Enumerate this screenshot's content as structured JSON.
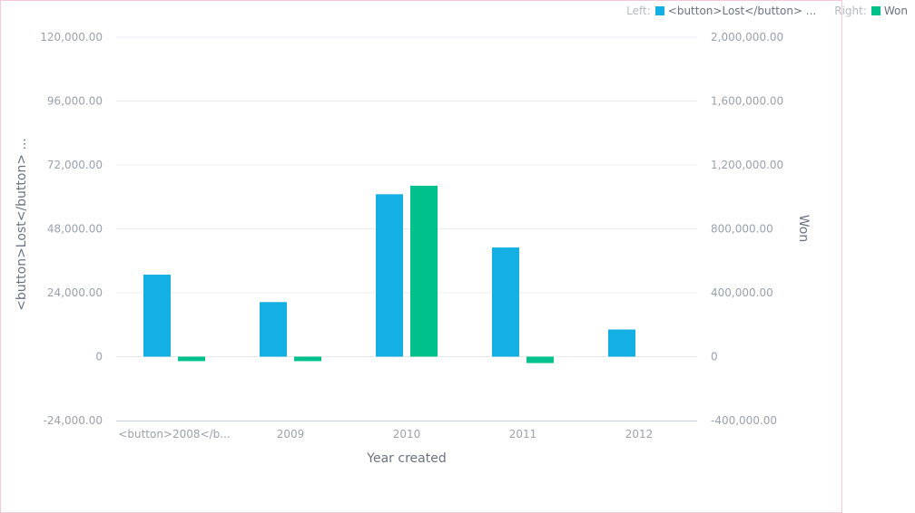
{
  "chart_data": {
    "type": "bar",
    "x_label": "Year created",
    "categories": [
      "<button>2008</b...",
      "2009",
      "2010",
      "2011",
      "2012"
    ],
    "left_axis": {
      "label": "<button>Lost</button> ...",
      "ylim": [
        -24000,
        120000
      ],
      "ticks": [
        -24000,
        0,
        24000,
        48000,
        72000,
        96000,
        120000
      ],
      "tick_labels": [
        "-24,000.00",
        "0",
        "24,000.00",
        "48,000.00",
        "72,000.00",
        "96,000.00",
        "120,000.00"
      ]
    },
    "right_axis": {
      "label": "Won",
      "ylim": [
        -400000,
        2000000
      ],
      "ticks": [
        -400000,
        0,
        400000,
        800000,
        1200000,
        1600000,
        2000000
      ],
      "tick_labels": [
        "-400,000.00",
        "0",
        "400,000.00",
        "800,000.00",
        "1,200,000.00",
        "1,600,000.00",
        "2,000,000.00"
      ]
    },
    "series": [
      {
        "name": "<button>Lost</button> ...",
        "axis": "left",
        "color": "#14b0e3",
        "values": [
          30800,
          20500,
          61000,
          41000,
          10200
        ]
      },
      {
        "name": "Won",
        "axis": "right",
        "color": "#00c08b",
        "values": [
          -28000,
          -28000,
          1070000,
          -40000,
          0
        ]
      }
    ],
    "grid": true,
    "legend": {
      "placement": "top-right",
      "left_prefix": "Left:",
      "right_prefix": "Right:",
      "left_text": "<button>Lost</button> ...",
      "right_text": "Won"
    }
  }
}
